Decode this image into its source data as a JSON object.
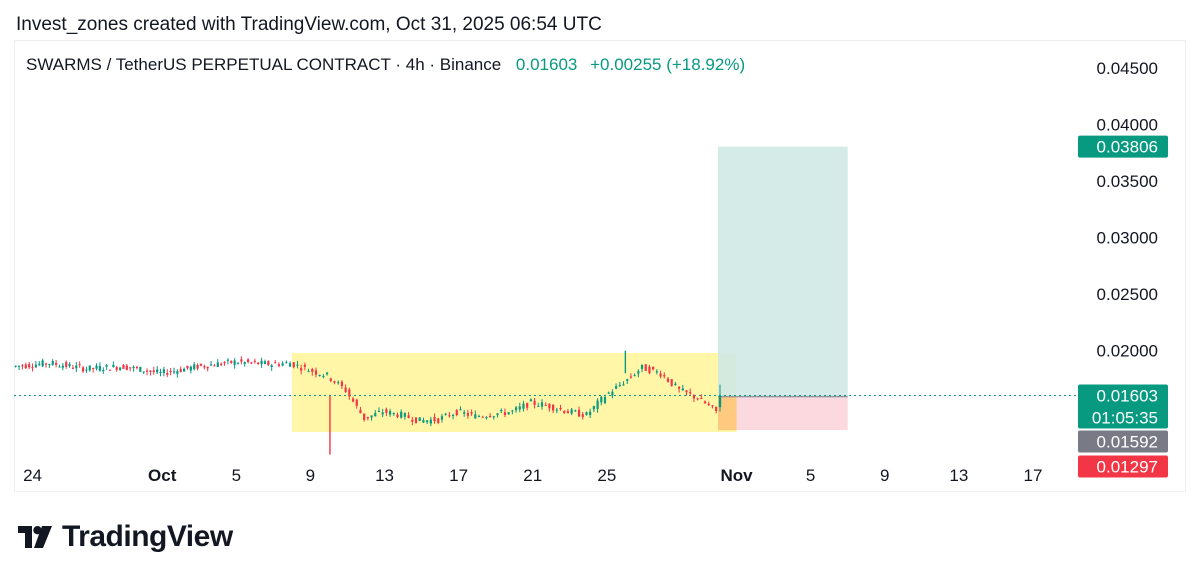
{
  "attribution": "Invest_zones created with TradingView.com, Oct 31, 2025 06:54 UTC",
  "symbol": {
    "name": "SWARMS / TetherUS PERPETUAL CONTRACT · 4h · Binance",
    "price": "0.01603",
    "change": "+0.00255 (+18.92%)"
  },
  "brand": "TradingView",
  "colors": {
    "up": "#089981",
    "down": "#f23645",
    "range_box": "#fff59d",
    "target_zone": "#cfe9e4",
    "stop_zone": "#fbd5da",
    "entry_overlap": "#ffc771",
    "current_price_line": "#089981"
  },
  "chart_data": {
    "type": "candlestick",
    "y_ticks": [
      "0.04500",
      "0.04000",
      "0.03500",
      "0.03000",
      "0.02500",
      "0.02000"
    ],
    "x_ticks": [
      "24",
      "Oct",
      "5",
      "9",
      "13",
      "17",
      "21",
      "25",
      "Nov",
      "5",
      "9",
      "13",
      "17"
    ],
    "price_labels": [
      {
        "value": "0.03806",
        "role": "target",
        "color": "#089981"
      },
      {
        "value": "0.01603",
        "role": "last-price",
        "color": "#089981"
      },
      {
        "value": "01:05:35",
        "role": "countdown",
        "color": "#089981"
      },
      {
        "value": "0.01592",
        "role": "entry",
        "color": "#787b86"
      },
      {
        "value": "0.01297",
        "role": "stop",
        "color": "#f23645"
      }
    ],
    "ylim": [
      0.0105,
      0.0475
    ],
    "xlim": [
      "2025-09-23",
      "2025-11-19"
    ],
    "range_box": {
      "x_start": "2025-10-08",
      "x_end": "2025-11-01",
      "y_low": 0.0128,
      "y_high": 0.0198
    },
    "long_position": {
      "x_start": "2025-10-31",
      "x_end": "2025-11-07",
      "entry": 0.01592,
      "target": 0.03806,
      "stop": 0.01297
    },
    "last_price": 0.01603,
    "series": [
      {
        "values": [
          [
            "2025-09-23",
            0.0186,
            0.0189
          ],
          [
            "2025-09-25",
            0.0189,
            0.0184
          ],
          [
            "2025-09-27",
            0.0184,
            0.0186
          ],
          [
            "2025-09-29",
            0.0186,
            0.018
          ],
          [
            "2025-10-01",
            0.018,
            0.0186
          ],
          [
            "2025-10-03",
            0.0186,
            0.019
          ],
          [
            "2025-10-05",
            0.019,
            0.0188
          ],
          [
            "2025-10-07",
            0.0188,
            0.0189
          ],
          [
            "2025-10-08",
            0.0189,
            0.0183
          ],
          [
            "2025-10-09",
            0.0183,
            0.0178
          ],
          [
            "2025-10-10",
            0.0178,
            0.0165
          ],
          [
            "2025-10-11",
            0.0165,
            0.014
          ],
          [
            "2025-10-12",
            0.014,
            0.0146
          ],
          [
            "2025-10-13",
            0.0146,
            0.0143
          ],
          [
            "2025-10-14",
            0.0143,
            0.0138
          ],
          [
            "2025-10-15",
            0.0138,
            0.0139
          ],
          [
            "2025-10-16",
            0.0139,
            0.0146
          ],
          [
            "2025-10-17",
            0.0146,
            0.0142
          ],
          [
            "2025-10-18",
            0.0142,
            0.0144
          ],
          [
            "2025-10-19",
            0.0144,
            0.0146
          ],
          [
            "2025-10-20",
            0.0146,
            0.0154
          ],
          [
            "2025-10-21",
            0.0154,
            0.0151
          ],
          [
            "2025-10-22",
            0.0151,
            0.0146
          ],
          [
            "2025-10-23",
            0.0146,
            0.0143
          ],
          [
            "2025-10-24",
            0.0143,
            0.016
          ],
          [
            "2025-10-25",
            0.016,
            0.0172
          ],
          [
            "2025-10-26",
            0.0172,
            0.0185
          ],
          [
            "2025-10-27",
            0.0185,
            0.018
          ],
          [
            "2025-10-28",
            0.018,
            0.0165
          ],
          [
            "2025-10-29",
            0.0165,
            0.0158
          ],
          [
            "2025-10-30",
            0.0158,
            0.0146
          ],
          [
            "2025-10-31",
            0.0146,
            0.01603
          ]
        ]
      }
    ],
    "spike_low": {
      "x": "2025-10-10",
      "value": 0.0108
    },
    "spike_high": {
      "x": "2025-10-26",
      "value": 0.02
    }
  }
}
